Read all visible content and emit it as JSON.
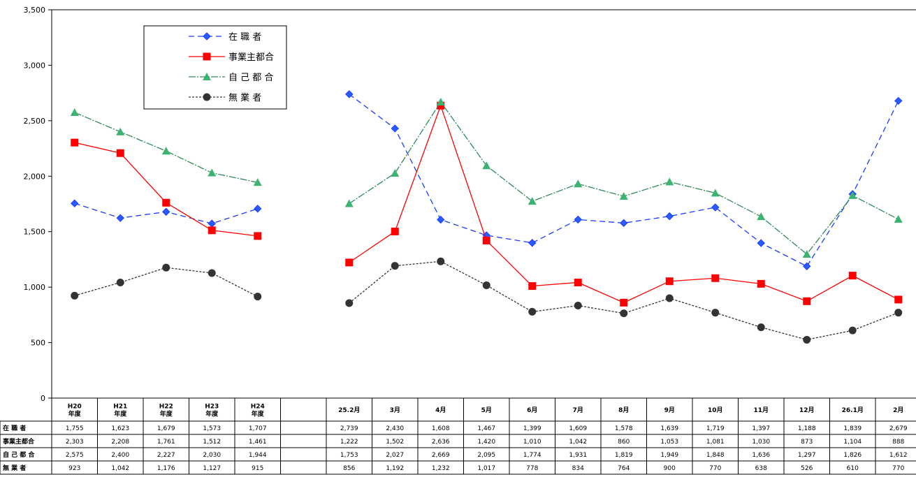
{
  "chart_data": {
    "type": "line",
    "yticks": [
      "0",
      "500",
      "1,000",
      "1,500",
      "2,000",
      "2,500",
      "3,000",
      "3,500"
    ],
    "ylim": [
      0,
      3500
    ],
    "categories": [
      [
        "H20",
        "年度"
      ],
      [
        "H21",
        "年度"
      ],
      [
        "H22",
        "年度"
      ],
      [
        "H23",
        "年度"
      ],
      [
        "H24",
        "年度"
      ],
      [
        ""
      ],
      [
        "25.2月"
      ],
      [
        "3月"
      ],
      [
        "4月"
      ],
      [
        "5月"
      ],
      [
        "6月"
      ],
      [
        "7月"
      ],
      [
        "8月"
      ],
      [
        "9月"
      ],
      [
        "10月"
      ],
      [
        "11月"
      ],
      [
        "12月"
      ],
      [
        "26.1月"
      ],
      [
        "2月"
      ]
    ],
    "groups": [
      [
        0,
        4
      ],
      [
        6,
        18
      ]
    ],
    "series": [
      {
        "name": "在 職 者",
        "legend": "在 職 者",
        "color": "#1a3dff",
        "marker": "diamond",
        "marker_fill": "#2a5bff",
        "dash": "8,5",
        "values": [
          1755,
          1623,
          1679,
          1573,
          1707,
          null,
          2739,
          2430,
          1608,
          1467,
          1399,
          1609,
          1578,
          1639,
          1719,
          1397,
          1188,
          1839,
          2679
        ],
        "labels": [
          "1,755",
          "1,623",
          "1,679",
          "1,573",
          "1,707",
          "",
          "2,739",
          "2,430",
          "1,608",
          "1,467",
          "1,399",
          "1,609",
          "1,578",
          "1,639",
          "1,719",
          "1,397",
          "1,188",
          "1,839",
          "2,679"
        ]
      },
      {
        "name": "事業主都合",
        "legend": "事業主都合",
        "color": "#ff0000",
        "marker": "square",
        "marker_fill": "#ff0000",
        "dash": "",
        "values": [
          2303,
          2208,
          1761,
          1512,
          1461,
          null,
          1222,
          1502,
          2636,
          1420,
          1010,
          1042,
          860,
          1053,
          1081,
          1030,
          873,
          1104,
          888
        ],
        "labels": [
          "2,303",
          "2,208",
          "1,761",
          "1,512",
          "1,461",
          "",
          "1,222",
          "1,502",
          "2,636",
          "1,420",
          "1,010",
          "1,042",
          "860",
          "1,053",
          "1,081",
          "1,030",
          "873",
          "1,104",
          "888"
        ]
      },
      {
        "name": "自 己 都 合",
        "legend": "自 己 都 合",
        "color": "#2e8b57",
        "marker": "triangle",
        "marker_fill": "#3cb371",
        "dash": "10,2,2,2",
        "values": [
          2575,
          2400,
          2227,
          2030,
          1944,
          null,
          1753,
          2027,
          2669,
          2095,
          1774,
          1931,
          1819,
          1949,
          1848,
          1636,
          1297,
          1826,
          1612
        ],
        "labels": [
          "2,575",
          "2,400",
          "2,227",
          "2,030",
          "1,944",
          "",
          "1,753",
          "2,027",
          "2,669",
          "2,095",
          "1,774",
          "1,931",
          "1,819",
          "1,949",
          "1,848",
          "1,636",
          "1,297",
          "1,826",
          "1,612"
        ]
      },
      {
        "name": "無 業 者",
        "legend": "無 業 者",
        "color": "#333333",
        "marker": "circle",
        "marker_fill": "#333333",
        "dash": "3,2",
        "values": [
          923,
          1042,
          1176,
          1127,
          915,
          null,
          856,
          1192,
          1232,
          1017,
          778,
          834,
          764,
          900,
          770,
          638,
          526,
          610,
          770
        ],
        "labels": [
          "923",
          "1,042",
          "1,176",
          "1,127",
          "915",
          "",
          "856",
          "1,192",
          "1,232",
          "1,017",
          "778",
          "834",
          "764",
          "900",
          "770",
          "638",
          "526",
          "610",
          "770"
        ]
      }
    ],
    "table_row_labels": [
      "在 職 者",
      "事業主都合",
      "自 己 都 合",
      "無 業 者"
    ],
    "grid": false,
    "legend_position": "top-left"
  }
}
